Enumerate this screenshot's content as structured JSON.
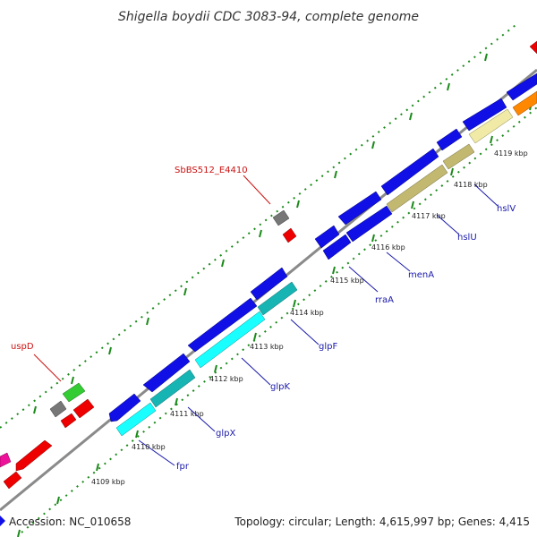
{
  "title": "Shigella boydii CDC 3083-94, complete genome",
  "footer": {
    "accession": "Accession: NC_010658",
    "stats": "Topology: circular; Length: 4,615,997 bp; Genes: 4,415"
  },
  "scale_labels": [
    "4109 kbp",
    "4110 kbp",
    "4111 kbp",
    "4112 kbp",
    "4113 kbp",
    "4114 kbp",
    "4115 kbp",
    "4116 kbp",
    "4117 kbp",
    "4118 kbp",
    "4119 kbp"
  ],
  "genes": [
    "fpr",
    "glpX",
    "glpK",
    "glpF",
    "rraA",
    "menA",
    "hslU",
    "hslV"
  ],
  "other_labels": [
    "uspD",
    "SbBS512_E4410"
  ],
  "colors": {
    "backbone": "#888888",
    "forward": "#1010e6",
    "glycerol": "#19ffff",
    "glycerol_dark": "#17b4b4",
    "heat_shock": "#c2b870",
    "heat_shock_light": "#f0eaa6",
    "tick": "#1a8a1a",
    "red": "#ee0000",
    "grey": "#777777",
    "green": "#33cc33",
    "orange": "#ff8800",
    "magenta": "#ee1199"
  }
}
